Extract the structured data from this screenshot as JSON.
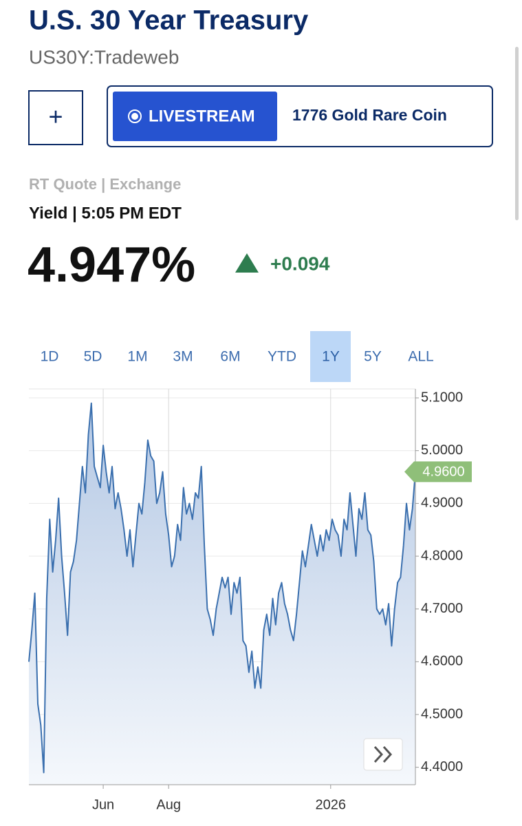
{
  "header": {
    "title": "U.S. 30 Year Treasury",
    "subtitle": "US30Y:Tradeweb"
  },
  "buttons": {
    "add": "+",
    "livestream": "LIVESTREAM",
    "promo": "1776 Gold Rare Coin"
  },
  "quote": {
    "source": "RT Quote | Exchange",
    "time": "Yield | 5:05 PM EDT",
    "price": "4.947%",
    "change": "+0.094"
  },
  "ranges": {
    "items": [
      "1D",
      "5D",
      "1M",
      "3M",
      "6M",
      "YTD",
      "1Y",
      "5Y",
      "ALL"
    ],
    "selected": "1Y"
  },
  "chart_data": {
    "type": "area",
    "series": [
      {
        "color": "#3a6fae",
        "values": [
          4.6,
          4.66,
          4.73,
          4.52,
          4.48,
          4.39,
          4.72,
          4.87,
          4.77,
          4.83,
          4.91,
          4.8,
          4.73,
          4.65,
          4.77,
          4.79,
          4.83,
          4.9,
          4.97,
          4.92,
          5.03,
          5.09,
          4.97,
          4.95,
          4.93,
          5.01,
          4.96,
          4.92,
          4.97,
          4.89,
          4.92,
          4.89,
          4.85,
          4.8,
          4.85,
          4.78,
          4.84,
          4.9,
          4.88,
          4.94,
          5.02,
          4.99,
          4.98,
          4.9,
          4.92,
          4.96,
          4.88,
          4.84,
          4.78,
          4.8,
          4.86,
          4.83,
          4.93,
          4.88,
          4.9,
          4.87,
          4.92,
          4.91,
          4.97,
          4.82,
          4.7,
          4.68,
          4.65,
          4.7,
          4.73,
          4.76,
          4.74,
          4.76,
          4.69,
          4.75,
          4.73,
          4.76,
          4.64,
          4.63,
          4.58,
          4.62,
          4.55,
          4.59,
          4.55,
          4.66,
          4.69,
          4.65,
          4.72,
          4.67,
          4.73,
          4.75,
          4.71,
          4.69,
          4.66,
          4.64,
          4.69,
          4.75,
          4.81,
          4.78,
          4.82,
          4.86,
          4.83,
          4.8,
          4.84,
          4.81,
          4.85,
          4.83,
          4.87,
          4.85,
          4.84,
          4.8,
          4.87,
          4.85,
          4.92,
          4.86,
          4.8,
          4.89,
          4.87,
          4.92,
          4.85,
          4.84,
          4.79,
          4.7,
          4.69,
          4.7,
          4.67,
          4.71,
          4.63,
          4.7,
          4.75,
          4.76,
          4.82,
          4.9,
          4.85,
          4.89,
          4.96
        ]
      }
    ],
    "last_value": {
      "value": 4.96,
      "label": "4.9600",
      "color": "#8fbf79"
    },
    "xlim": [
      0,
      130
    ],
    "xticks": [
      {
        "value": 25,
        "label": "Jun"
      },
      {
        "value": 47,
        "label": "Aug"
      },
      {
        "value": 101.5,
        "label": "2026"
      }
    ],
    "ylim": [
      4.367,
      5.117
    ],
    "yticks": [
      {
        "value": 4.4,
        "label": "4.4000"
      },
      {
        "value": 4.5,
        "label": "4.5000"
      },
      {
        "value": 4.6,
        "label": "4.6000"
      },
      {
        "value": 4.7,
        "label": "4.7000"
      },
      {
        "value": 4.8,
        "label": "4.8000"
      },
      {
        "value": 4.9,
        "label": "4.9000"
      },
      {
        "value": 5.0,
        "label": "5.0000"
      },
      {
        "value": 5.1,
        "label": "5.1000"
      }
    ],
    "grid": true
  }
}
